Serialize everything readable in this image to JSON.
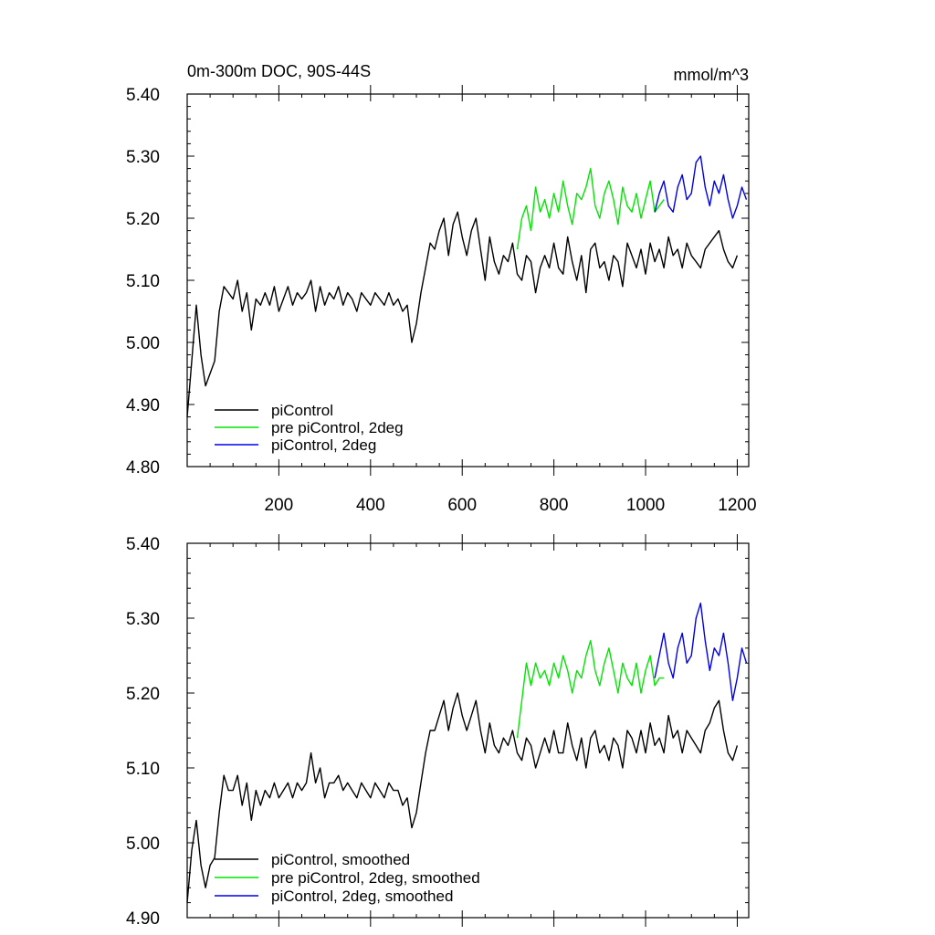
{
  "figure": {
    "title_left": "0m-300m DOC, 90S-44S",
    "title_right": "mmol/m^3"
  },
  "chart_data": [
    {
      "type": "line",
      "name": "raw",
      "title": "0m-300m DOC, 90S-44S",
      "units": "mmol/m^3",
      "xlim": [
        0,
        1225
      ],
      "ylim": [
        4.8,
        5.4
      ],
      "xticks": [
        200,
        400,
        600,
        800,
        1000,
        1200
      ],
      "xtick_labels": [
        "200",
        "400",
        "600",
        "800",
        "1000",
        "1200"
      ],
      "yticks": [
        4.8,
        4.9,
        5.0,
        5.1,
        5.2,
        5.3,
        5.4
      ],
      "ytick_labels": [
        "4.80",
        "4.90",
        "5.00",
        "5.10",
        "5.20",
        "5.30",
        "5.40"
      ],
      "legend_position": "bottom-left",
      "series": [
        {
          "name": "piControl",
          "color": "#000000",
          "x_start": 0,
          "x_step": 10,
          "values": [
            4.88,
            4.97,
            5.06,
            4.98,
            4.93,
            4.95,
            4.97,
            5.05,
            5.09,
            5.08,
            5.07,
            5.1,
            5.05,
            5.08,
            5.02,
            5.07,
            5.06,
            5.08,
            5.06,
            5.09,
            5.05,
            5.07,
            5.09,
            5.06,
            5.08,
            5.07,
            5.08,
            5.1,
            5.05,
            5.09,
            5.06,
            5.08,
            5.07,
            5.09,
            5.06,
            5.08,
            5.07,
            5.05,
            5.08,
            5.07,
            5.06,
            5.08,
            5.07,
            5.06,
            5.08,
            5.06,
            5.07,
            5.05,
            5.06,
            5.0,
            5.03,
            5.08,
            5.12,
            5.16,
            5.15,
            5.18,
            5.2,
            5.14,
            5.19,
            5.21,
            5.17,
            5.14,
            5.18,
            5.2,
            5.15,
            5.1,
            5.17,
            5.13,
            5.11,
            5.14,
            5.13,
            5.16,
            5.11,
            5.1,
            5.14,
            5.13,
            5.08,
            5.12,
            5.14,
            5.12,
            5.16,
            5.12,
            5.11,
            5.17,
            5.13,
            5.1,
            5.14,
            5.08,
            5.15,
            5.16,
            5.12,
            5.13,
            5.1,
            5.14,
            5.13,
            5.09,
            5.16,
            5.14,
            5.12,
            5.15,
            5.11,
            5.16,
            5.13,
            5.15,
            5.12,
            5.17,
            5.14,
            5.15,
            5.12,
            5.16,
            5.14,
            5.13,
            5.12,
            5.15,
            5.16,
            5.17,
            5.18,
            5.15,
            5.13,
            5.12,
            5.14
          ]
        },
        {
          "name": "pre piControl, 2deg",
          "color": "#00e600",
          "x_start": 720,
          "x_step": 10,
          "values": [
            5.15,
            5.2,
            5.22,
            5.18,
            5.25,
            5.21,
            5.23,
            5.2,
            5.24,
            5.21,
            5.26,
            5.22,
            5.19,
            5.24,
            5.23,
            5.25,
            5.28,
            5.22,
            5.2,
            5.24,
            5.26,
            5.23,
            5.19,
            5.25,
            5.22,
            5.21,
            5.24,
            5.2,
            5.23,
            5.26,
            5.21,
            5.22,
            5.23
          ]
        },
        {
          "name": "piControl, 2deg",
          "color": "#0000e6",
          "x_start": 1020,
          "x_step": 10,
          "values": [
            5.21,
            5.24,
            5.26,
            5.22,
            5.21,
            5.25,
            5.27,
            5.23,
            5.24,
            5.29,
            5.3,
            5.25,
            5.22,
            5.26,
            5.24,
            5.27,
            5.23,
            5.2,
            5.22,
            5.25,
            5.23
          ]
        }
      ]
    },
    {
      "type": "line",
      "name": "smoothed",
      "xlim": [
        0,
        1225
      ],
      "ylim": [
        4.9,
        5.4
      ],
      "yticks": [
        4.9,
        5.0,
        5.1,
        5.2,
        5.3,
        5.4
      ],
      "ytick_labels": [
        "4.90",
        "5.00",
        "5.10",
        "5.20",
        "5.30",
        "5.40"
      ],
      "xticks": [
        200,
        400,
        600,
        800,
        1000,
        1200
      ],
      "legend_position": "bottom-left",
      "series": [
        {
          "name": "piControl, smoothed",
          "color": "#000000",
          "x_start": 0,
          "x_step": 10,
          "values": [
            4.92,
            4.99,
            5.03,
            4.97,
            4.94,
            4.97,
            4.98,
            5.04,
            5.09,
            5.07,
            5.07,
            5.09,
            5.05,
            5.08,
            5.03,
            5.07,
            5.05,
            5.07,
            5.06,
            5.08,
            5.06,
            5.07,
            5.08,
            5.06,
            5.08,
            5.07,
            5.08,
            5.12,
            5.08,
            5.1,
            5.06,
            5.08,
            5.08,
            5.09,
            5.07,
            5.08,
            5.07,
            5.06,
            5.08,
            5.07,
            5.06,
            5.08,
            5.07,
            5.06,
            5.08,
            5.07,
            5.07,
            5.05,
            5.06,
            5.02,
            5.04,
            5.08,
            5.12,
            5.15,
            5.15,
            5.17,
            5.19,
            5.15,
            5.18,
            5.2,
            5.17,
            5.15,
            5.17,
            5.19,
            5.15,
            5.12,
            5.16,
            5.13,
            5.12,
            5.14,
            5.13,
            5.15,
            5.12,
            5.11,
            5.14,
            5.13,
            5.1,
            5.12,
            5.14,
            5.12,
            5.15,
            5.12,
            5.12,
            5.16,
            5.13,
            5.11,
            5.14,
            5.1,
            5.14,
            5.15,
            5.12,
            5.13,
            5.11,
            5.14,
            5.13,
            5.1,
            5.15,
            5.14,
            5.12,
            5.15,
            5.12,
            5.16,
            5.13,
            5.14,
            5.12,
            5.17,
            5.14,
            5.15,
            5.12,
            5.15,
            5.14,
            5.13,
            5.12,
            5.15,
            5.16,
            5.18,
            5.19,
            5.15,
            5.12,
            5.11,
            5.13
          ]
        },
        {
          "name": "pre piControl, 2deg, smoothed",
          "color": "#00e600",
          "x_start": 720,
          "x_step": 10,
          "values": [
            5.14,
            5.19,
            5.24,
            5.21,
            5.24,
            5.22,
            5.23,
            5.21,
            5.24,
            5.22,
            5.25,
            5.23,
            5.2,
            5.23,
            5.22,
            5.25,
            5.27,
            5.23,
            5.21,
            5.24,
            5.26,
            5.23,
            5.2,
            5.24,
            5.22,
            5.21,
            5.24,
            5.2,
            5.23,
            5.25,
            5.21,
            5.22,
            5.22
          ]
        },
        {
          "name": "piControl, 2deg, smoothed",
          "color": "#0000e6",
          "x_start": 1020,
          "x_step": 10,
          "values": [
            5.22,
            5.25,
            5.28,
            5.24,
            5.22,
            5.26,
            5.28,
            5.24,
            5.25,
            5.3,
            5.32,
            5.27,
            5.23,
            5.26,
            5.25,
            5.28,
            5.24,
            5.19,
            5.22,
            5.26,
            5.24
          ]
        }
      ]
    }
  ]
}
